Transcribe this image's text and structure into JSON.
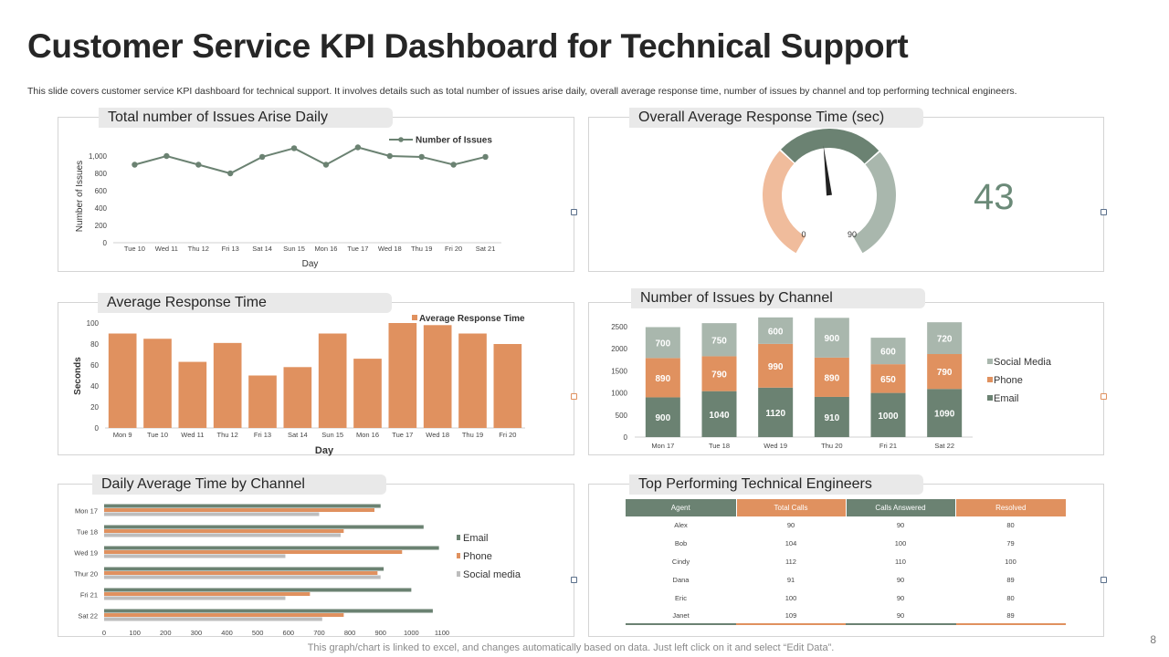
{
  "header": {
    "title": "Customer Service KPI Dashboard for Technical Support",
    "subtitle": "This slide covers customer service KPI dashboard for technical support. It involves details such as total number of issues arise daily, overall average response time, number of issues by channel and top performing technical engineers."
  },
  "footer": {
    "note": "This graph/chart is linked to excel, and changes automatically based on data. Just left click on it and select “Edit Data”.",
    "page_number": "8"
  },
  "colors": {
    "green": "#6b8272",
    "orange": "#e0915f",
    "light_green": "#a9b7ad",
    "light_orange": "#f0bc9c",
    "gray": "#bdbdbd"
  },
  "panels": {
    "issues_daily": {
      "heading": "Total number  of Issues Arise Daily"
    },
    "response_gauge": {
      "heading": "Overall Average Response Time (sec)",
      "value": "43",
      "min_label": "0",
      "max_label": "90"
    },
    "avg_response": {
      "heading": "Average Response Time"
    },
    "issues_channel": {
      "heading": "Number of Issues by Channel"
    },
    "daily_channel": {
      "heading": "Daily Average Time by Channel"
    },
    "engineers": {
      "heading": "Top Performing Technical Engineers",
      "columns": [
        "Agent",
        "Total Calls",
        "Calls Answered",
        "Resolved"
      ],
      "rows": [
        [
          "Alex",
          "90",
          "90",
          "80"
        ],
        [
          "Bob",
          "104",
          "100",
          "79"
        ],
        [
          "Cindy",
          "112",
          "110",
          "100"
        ],
        [
          "Dana",
          "91",
          "90",
          "89"
        ],
        [
          "Eric",
          "100",
          "90",
          "80"
        ],
        [
          "Janet",
          "109",
          "90",
          "89"
        ]
      ]
    }
  },
  "chart_data": [
    {
      "id": "issues_daily",
      "type": "line",
      "title": "Total number  of Issues Arise Daily",
      "categories": [
        "Tue 10",
        "Wed 11",
        "Thu 12",
        "Fri 13",
        "Sat 14",
        "Sun 15",
        "Mon 16",
        "Tue 17",
        "Wed 18",
        "Thu 19",
        "Fri 20",
        "Sat 21"
      ],
      "series": [
        {
          "name": "Number of Issues",
          "values": [
            900,
            1000,
            900,
            800,
            990,
            1090,
            900,
            1100,
            1000,
            990,
            900,
            990
          ]
        }
      ],
      "xlabel": "Day",
      "ylabel": "Number of Issues",
      "ylim": [
        0,
        1000
      ],
      "yticks": [
        "0",
        "200",
        "400",
        "600",
        "800",
        "1,000"
      ],
      "legend": "top-right"
    },
    {
      "id": "response_gauge",
      "type": "gauge",
      "value": 43,
      "min": 0,
      "max": 90
    },
    {
      "id": "avg_response",
      "type": "bar",
      "title": "Average Response Time",
      "categories": [
        "Mon 9",
        "Tue 10",
        "Wed 11",
        "Thu 12",
        "Fri 13",
        "Sat 14",
        "Sun 15",
        "Mon 16",
        "Tue 17",
        "Wed 18",
        "Thu 19",
        "Fri 20"
      ],
      "series": [
        {
          "name": "Average Response Time",
          "values": [
            90,
            85,
            63,
            81,
            50,
            58,
            90,
            66,
            100,
            98,
            90,
            80
          ]
        }
      ],
      "xlabel": "Day",
      "ylabel": "Seconds",
      "ylim": [
        0,
        100
      ],
      "yticks": [
        "0",
        "20",
        "40",
        "60",
        "80",
        "100"
      ],
      "legend": "top-right"
    },
    {
      "id": "issues_channel",
      "type": "bar",
      "stacked": true,
      "title": "Number of Issues by Channel",
      "categories": [
        "Mon 17",
        "Tue 18",
        "Wed 19",
        "Thu 20",
        "Fri 21",
        "Sat 22"
      ],
      "series": [
        {
          "name": "Email",
          "values": [
            900,
            1040,
            1120,
            910,
            1000,
            1090
          ]
        },
        {
          "name": "Phone",
          "values": [
            890,
            790,
            990,
            890,
            650,
            790
          ]
        },
        {
          "name": "Social Media",
          "values": [
            700,
            750,
            600,
            900,
            600,
            720
          ]
        }
      ],
      "ylim": [
        0,
        2500
      ],
      "yticks": [
        "0",
        "500",
        "1000",
        "1500",
        "2000",
        "2500"
      ],
      "legend": "right"
    },
    {
      "id": "daily_channel",
      "type": "bar",
      "orientation": "horizontal",
      "title": "Daily Average Time by Channel",
      "categories": [
        "Mon  17",
        "Tue 18",
        "Wed 19",
        "Thur 20",
        "Fri 21",
        "Sat 22"
      ],
      "series": [
        {
          "name": "Email",
          "values": [
            900,
            1040,
            1090,
            910,
            1000,
            1070
          ]
        },
        {
          "name": "Phone",
          "values": [
            880,
            780,
            970,
            890,
            670,
            780
          ]
        },
        {
          "name": "Social media",
          "values": [
            700,
            770,
            590,
            900,
            590,
            710
          ]
        }
      ],
      "xlim": [
        0,
        1100
      ],
      "xticks": [
        "0",
        "100",
        "200",
        "300",
        "400",
        "500",
        "600",
        "700",
        "800",
        "900",
        "1000",
        "1100"
      ],
      "legend": "right"
    }
  ]
}
